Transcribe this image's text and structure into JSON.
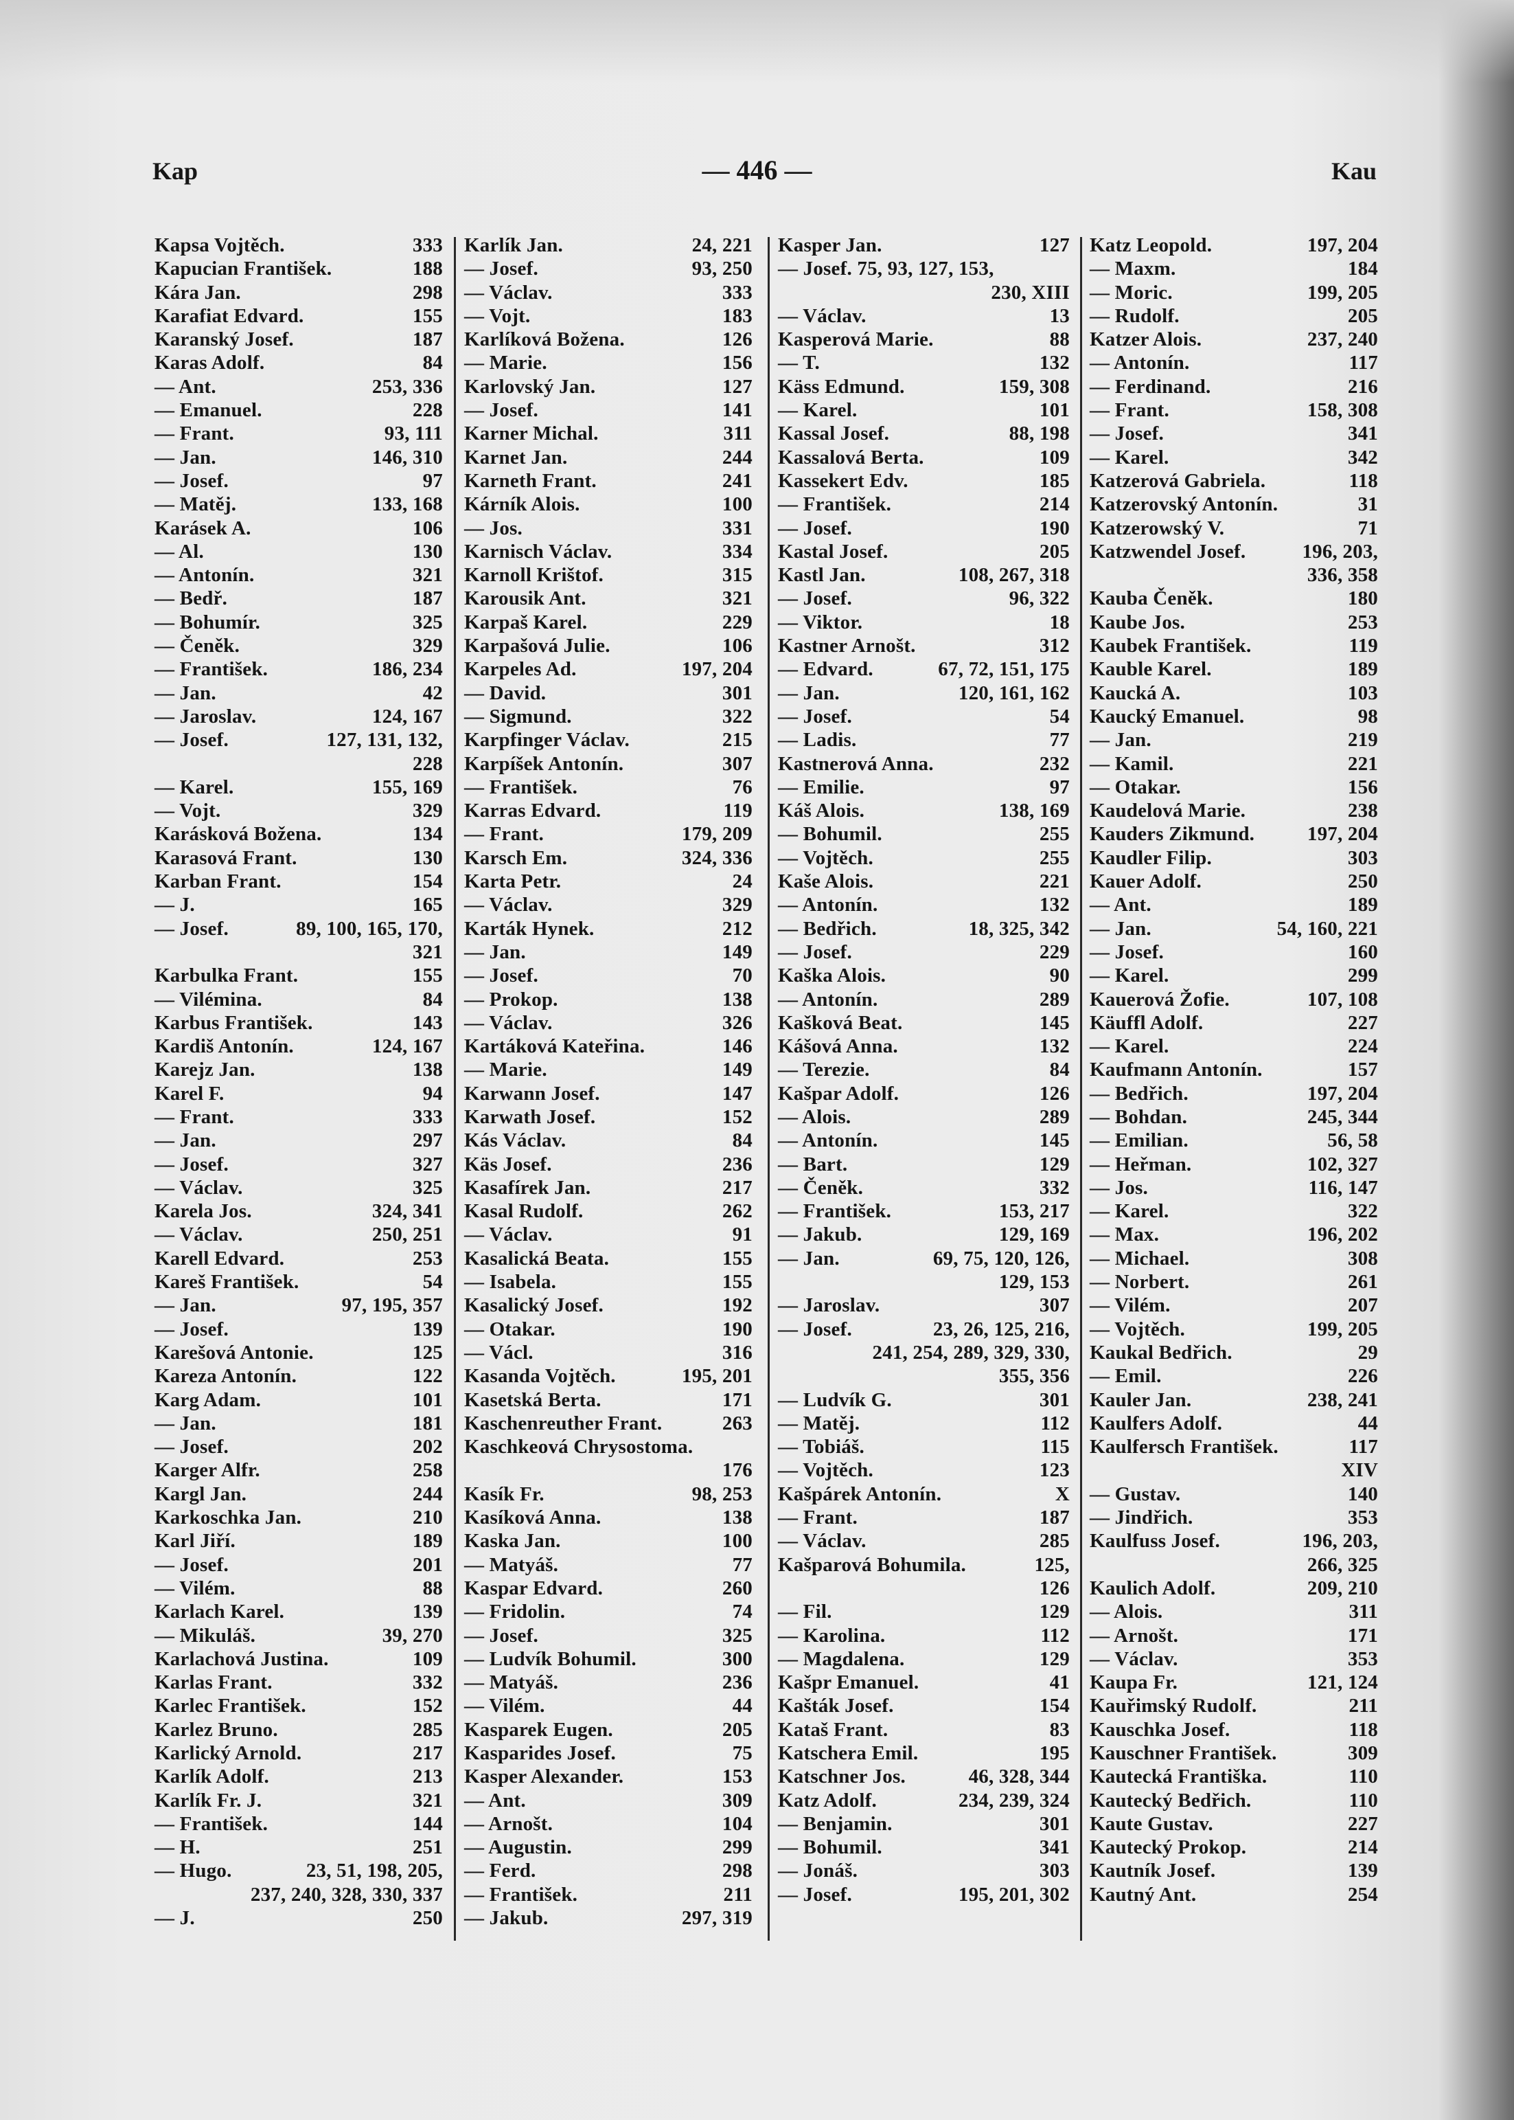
{
  "header": {
    "left": "Kap",
    "page_number": "— 446 —",
    "right": "Kau"
  },
  "columns": [
    [
      [
        "Kapsa Vojtěch.",
        "333"
      ],
      [
        "Kapucian František.",
        "188"
      ],
      [
        "Kára Jan.",
        "298"
      ],
      [
        "Karafiat Edvard.",
        "155"
      ],
      [
        "Karanský Josef.",
        "187"
      ],
      [
        "Karas Adolf.",
        "84"
      ],
      [
        "— Ant.",
        "253, 336"
      ],
      [
        "— Emanuel.",
        "228"
      ],
      [
        "— Frant.",
        "93, 111"
      ],
      [
        "— Jan.",
        "146, 310"
      ],
      [
        "— Josef.",
        "97"
      ],
      [
        "— Matěj.",
        "133, 168"
      ],
      [
        "Karásek A.",
        "106"
      ],
      [
        "— Al.",
        "130"
      ],
      [
        "— Antonín.",
        "321"
      ],
      [
        "— Bedř.",
        "187"
      ],
      [
        "— Bohumír.",
        "325"
      ],
      [
        "— Čeněk.",
        "329"
      ],
      [
        "— František.",
        "186, 234"
      ],
      [
        "— Jan.",
        "42"
      ],
      [
        "— Jaroslav.",
        "124, 167"
      ],
      [
        "— Josef.",
        "127, 131, 132,"
      ],
      [
        "",
        "228"
      ],
      [
        "— Karel.",
        "155, 169"
      ],
      [
        "— Vojt.",
        "329"
      ],
      [
        "Karásková Božena.",
        "134"
      ],
      [
        "Karasová Frant.",
        "130"
      ],
      [
        "Karban Frant.",
        "154"
      ],
      [
        "— J.",
        "165"
      ],
      [
        "— Josef.",
        "89, 100, 165, 170,"
      ],
      [
        "",
        "321"
      ],
      [
        "Karbulka Frant.",
        "155"
      ],
      [
        "— Vilémina.",
        "84"
      ],
      [
        "Karbus František.",
        "143"
      ],
      [
        "Kardiš Antonín.",
        "124, 167"
      ],
      [
        "Karejz Jan.",
        "138"
      ],
      [
        "Karel F.",
        "94"
      ],
      [
        "— Frant.",
        "333"
      ],
      [
        "— Jan.",
        "297"
      ],
      [
        "— Josef.",
        "327"
      ],
      [
        "— Václav.",
        "325"
      ],
      [
        "Karela Jos.",
        "324, 341"
      ],
      [
        "— Václav.",
        "250, 251"
      ],
      [
        "Karell Edvard.",
        "253"
      ],
      [
        "Kareš František.",
        "54"
      ],
      [
        "— Jan.",
        "97, 195, 357"
      ],
      [
        "— Josef.",
        "139"
      ],
      [
        "Karešová Antonie.",
        "125"
      ],
      [
        "Kareza Antonín.",
        "122"
      ],
      [
        "Karg Adam.",
        "101"
      ],
      [
        "— Jan.",
        "181"
      ],
      [
        "— Josef.",
        "202"
      ],
      [
        "Karger Alfr.",
        "258"
      ],
      [
        "Kargl Jan.",
        "244"
      ],
      [
        "Karkoschka Jan.",
        "210"
      ],
      [
        "Karl Jiří.",
        "189"
      ],
      [
        "— Josef.",
        "201"
      ],
      [
        "— Vilém.",
        "88"
      ],
      [
        "Karlach Karel.",
        "139"
      ],
      [
        "— Mikuláš.",
        "39, 270"
      ],
      [
        "Karlachová Justina.",
        "109"
      ],
      [
        "Karlas Frant.",
        "332"
      ],
      [
        "Karlec František.",
        "152"
      ],
      [
        "Karlez Bruno.",
        "285"
      ],
      [
        "Karlický Arnold.",
        "217"
      ],
      [
        "Karlík Adolf.",
        "213"
      ],
      [
        "Karlík Fr. J.",
        "321"
      ],
      [
        "— František.",
        "144"
      ],
      [
        "— H.",
        "251"
      ],
      [
        "— Hugo.",
        "23, 51, 198, 205,"
      ],
      [
        "",
        "237, 240, 328, 330, 337"
      ],
      [
        "— J.",
        "250"
      ]
    ],
    [
      [
        "Karlík Jan.",
        "24, 221"
      ],
      [
        "— Josef.",
        "93, 250"
      ],
      [
        "— Václav.",
        "333"
      ],
      [
        "— Vojt.",
        "183"
      ],
      [
        "Karlíková Božena.",
        "126"
      ],
      [
        "— Marie.",
        "156"
      ],
      [
        "Karlovský Jan.",
        "127"
      ],
      [
        "— Josef.",
        "141"
      ],
      [
        "Karner Michal.",
        "311"
      ],
      [
        "Karnet Jan.",
        "244"
      ],
      [
        "Karneth Frant.",
        "241"
      ],
      [
        "Kárník Alois.",
        "100"
      ],
      [
        "— Jos.",
        "331"
      ],
      [
        "Karnisch Václav.",
        "334"
      ],
      [
        "Karnoll Krištof.",
        "315"
      ],
      [
        "Karousik Ant.",
        "321"
      ],
      [
        "Karpaš Karel.",
        "229"
      ],
      [
        "Karpašová Julie.",
        "106"
      ],
      [
        "Karpeles Ad.",
        "197, 204"
      ],
      [
        "— David.",
        "301"
      ],
      [
        "— Sigmund.",
        "322"
      ],
      [
        "Karpfinger Václav.",
        "215"
      ],
      [
        "Karpíšek Antonín.",
        "307"
      ],
      [
        "— František.",
        "76"
      ],
      [
        "Karras Edvard.",
        "119"
      ],
      [
        "— Frant.",
        "179, 209"
      ],
      [
        "Karsch Em.",
        "324, 336"
      ],
      [
        "Karta Petr.",
        "24"
      ],
      [
        "— Václav.",
        "329"
      ],
      [
        "Karták Hynek.",
        "212"
      ],
      [
        "— Jan.",
        "149"
      ],
      [
        "— Josef.",
        "70"
      ],
      [
        "— Prokop.",
        "138"
      ],
      [
        "— Václav.",
        "326"
      ],
      [
        "Kartáková Kateřina.",
        "146"
      ],
      [
        "— Marie.",
        "149"
      ],
      [
        "Karwann Josef.",
        "147"
      ],
      [
        "Karwath Josef.",
        "152"
      ],
      [
        "Kás Václav.",
        "84"
      ],
      [
        "Käs Josef.",
        "236"
      ],
      [
        "Kasafírek Jan.",
        "217"
      ],
      [
        "Kasal Rudolf.",
        "262"
      ],
      [
        "— Václav.",
        "91"
      ],
      [
        "Kasalická Beata.",
        "155"
      ],
      [
        "— Isabela.",
        "155"
      ],
      [
        "Kasalický Josef.",
        "192"
      ],
      [
        "— Otakar.",
        "190"
      ],
      [
        "— Václ.",
        "316"
      ],
      [
        "Kasanda Vojtěch.",
        "195, 201"
      ],
      [
        "Kasetská Berta.",
        "171"
      ],
      [
        "Kaschenreuther Frant.",
        "263"
      ],
      [
        "Kaschkeová Chrysostoma.",
        ""
      ],
      [
        "",
        "176"
      ],
      [
        "Kasík Fr.",
        "98, 253"
      ],
      [
        "Kasíková Anna.",
        "138"
      ],
      [
        "Kaska Jan.",
        "100"
      ],
      [
        "— Matyáš.",
        "77"
      ],
      [
        "Kaspar Edvard.",
        "260"
      ],
      [
        "— Fridolin.",
        "74"
      ],
      [
        "— Josef.",
        "325"
      ],
      [
        "— Ludvík Bohumil.",
        "300"
      ],
      [
        "— Matyáš.",
        "236"
      ],
      [
        "— Vilém.",
        "44"
      ],
      [
        "Kasparek Eugen.",
        "205"
      ],
      [
        "Kasparides Josef.",
        "75"
      ],
      [
        "Kasper Alexander.",
        "153"
      ],
      [
        "— Ant.",
        "309"
      ],
      [
        "— Arnošt.",
        "104"
      ],
      [
        "— Augustin.",
        "299"
      ],
      [
        "— Ferd.",
        "298"
      ],
      [
        "— František.",
        "211"
      ],
      [
        "— Jakub.",
        "297, 319"
      ]
    ],
    [
      [
        "Kasper Jan.",
        "127"
      ],
      [
        "— Josef. 75, 93, 127, 153,",
        ""
      ],
      [
        "",
        "230, XIII"
      ],
      [
        "— Václav.",
        "13"
      ],
      [
        "Kasperová Marie.",
        "88"
      ],
      [
        "— T.",
        "132"
      ],
      [
        "Käss Edmund.",
        "159, 308"
      ],
      [
        "— Karel.",
        "101"
      ],
      [
        "Kassal Josef.",
        "88, 198"
      ],
      [
        "Kassalová Berta.",
        "109"
      ],
      [
        "Kassekert Edv.",
        "185"
      ],
      [
        "— František.",
        "214"
      ],
      [
        "— Josef.",
        "190"
      ],
      [
        "Kastal Josef.",
        "205"
      ],
      [
        "Kastl Jan.",
        "108, 267, 318"
      ],
      [
        "— Josef.",
        "96, 322"
      ],
      [
        "— Viktor.",
        "18"
      ],
      [
        "Kastner Arnošt.",
        "312"
      ],
      [
        "— Edvard.",
        "67, 72, 151, 175"
      ],
      [
        "— Jan.",
        "120, 161, 162"
      ],
      [
        "— Josef.",
        "54"
      ],
      [
        "— Ladis.",
        "77"
      ],
      [
        "Kastnerová Anna.",
        "232"
      ],
      [
        "— Emilie.",
        "97"
      ],
      [
        "Káš Alois.",
        "138, 169"
      ],
      [
        "— Bohumil.",
        "255"
      ],
      [
        "— Vojtěch.",
        "255"
      ],
      [
        "Kaše Alois.",
        "221"
      ],
      [
        "— Antonín.",
        "132"
      ],
      [
        "— Bedřich.",
        "18, 325, 342"
      ],
      [
        "— Josef.",
        "229"
      ],
      [
        "Kaška Alois.",
        "90"
      ],
      [
        "— Antonín.",
        "289"
      ],
      [
        "Kašková Beat.",
        "145"
      ],
      [
        "Kášová Anna.",
        "132"
      ],
      [
        "— Terezie.",
        "84"
      ],
      [
        "Kašpar Adolf.",
        "126"
      ],
      [
        "— Alois.",
        "289"
      ],
      [
        "— Antonín.",
        "145"
      ],
      [
        "— Bart.",
        "129"
      ],
      [
        "— Čeněk.",
        "332"
      ],
      [
        "— František.",
        "153, 217"
      ],
      [
        "— Jakub.",
        "129, 169"
      ],
      [
        "— Jan.",
        "69, 75, 120, 126,"
      ],
      [
        "",
        "129, 153"
      ],
      [
        "— Jaroslav.",
        "307"
      ],
      [
        "— Josef.",
        "23, 26, 125, 216,"
      ],
      [
        "",
        "241, 254, 289, 329, 330,"
      ],
      [
        "",
        "355, 356"
      ],
      [
        "— Ludvík G.",
        "301"
      ],
      [
        "— Matěj.",
        "112"
      ],
      [
        "— Tobiáš.",
        "115"
      ],
      [
        "— Vojtěch.",
        "123"
      ],
      [
        "Kašpárek Antonín.",
        "X"
      ],
      [
        "— Frant.",
        "187"
      ],
      [
        "— Václav.",
        "285"
      ],
      [
        "Kašparová Bohumila.",
        "125,"
      ],
      [
        "",
        "126"
      ],
      [
        "— Fil.",
        "129"
      ],
      [
        "— Karolina.",
        "112"
      ],
      [
        "— Magdalena.",
        "129"
      ],
      [
        "Kašpr Emanuel.",
        "41"
      ],
      [
        "Kašták Josef.",
        "154"
      ],
      [
        "Kataš Frant.",
        "83"
      ],
      [
        "Katschera Emil.",
        "195"
      ],
      [
        "Katschner Jos.",
        "46, 328, 344"
      ],
      [
        "Katz Adolf.",
        "234, 239, 324"
      ],
      [
        "— Benjamin.",
        "301"
      ],
      [
        "— Bohumil.",
        "341"
      ],
      [
        "— Jonáš.",
        "303"
      ],
      [
        "— Josef.",
        "195, 201, 302"
      ]
    ],
    [
      [
        "Katz Leopold.",
        "197, 204"
      ],
      [
        "— Maxm.",
        "184"
      ],
      [
        "— Moric.",
        "199, 205"
      ],
      [
        "— Rudolf.",
        "205"
      ],
      [
        "Katzer Alois.",
        "237, 240"
      ],
      [
        "— Antonín.",
        "117"
      ],
      [
        "— Ferdinand.",
        "216"
      ],
      [
        "— Frant.",
        "158, 308"
      ],
      [
        "— Josef.",
        "341"
      ],
      [
        "— Karel.",
        "342"
      ],
      [
        "Katzerová Gabriela.",
        "118"
      ],
      [
        "Katzerovský Antonín.",
        "31"
      ],
      [
        "Katzerowský V.",
        "71"
      ],
      [
        "Katzwendel Josef.",
        "196, 203,"
      ],
      [
        "",
        "336, 358"
      ],
      [
        "Kauba Čeněk.",
        "180"
      ],
      [
        "Kaube Jos.",
        "253"
      ],
      [
        "Kaubek František.",
        "119"
      ],
      [
        "Kauble Karel.",
        "189"
      ],
      [
        "Kaucká A.",
        "103"
      ],
      [
        "Kaucký Emanuel.",
        "98"
      ],
      [
        "— Jan.",
        "219"
      ],
      [
        "— Kamil.",
        "221"
      ],
      [
        "— Otakar.",
        "156"
      ],
      [
        "Kaudelová Marie.",
        "238"
      ],
      [
        "Kauders Zikmund.",
        "197, 204"
      ],
      [
        "Kaudler Filip.",
        "303"
      ],
      [
        "Kauer Adolf.",
        "250"
      ],
      [
        "— Ant.",
        "189"
      ],
      [
        "— Jan.",
        "54, 160, 221"
      ],
      [
        "— Josef.",
        "160"
      ],
      [
        "— Karel.",
        "299"
      ],
      [
        "Kauerová Žofie.",
        "107, 108"
      ],
      [
        "Käuffl Adolf.",
        "227"
      ],
      [
        "— Karel.",
        "224"
      ],
      [
        "Kaufmann Antonín.",
        "157"
      ],
      [
        "— Bedřich.",
        "197, 204"
      ],
      [
        "— Bohdan.",
        "245, 344"
      ],
      [
        "— Emilian.",
        "56, 58"
      ],
      [
        "— Heřman.",
        "102, 327"
      ],
      [
        "— Jos.",
        "116, 147"
      ],
      [
        "— Karel.",
        "322"
      ],
      [
        "— Max.",
        "196, 202"
      ],
      [
        "— Michael.",
        "308"
      ],
      [
        "— Norbert.",
        "261"
      ],
      [
        "— Vilém.",
        "207"
      ],
      [
        "— Vojtěch.",
        "199, 205"
      ],
      [
        "Kaukal Bedřich.",
        "29"
      ],
      [
        "— Emil.",
        "226"
      ],
      [
        "Kauler Jan.",
        "238, 241"
      ],
      [
        "Kaulfers Adolf.",
        "44"
      ],
      [
        "Kaulfersch František.",
        "117"
      ],
      [
        "",
        "XIV"
      ],
      [
        "— Gustav.",
        "140"
      ],
      [
        "— Jindřich.",
        "353"
      ],
      [
        "Kaulfuss Josef.",
        "196, 203,"
      ],
      [
        "",
        "266, 325"
      ],
      [
        "Kaulich Adolf.",
        "209, 210"
      ],
      [
        "— Alois.",
        "311"
      ],
      [
        "— Arnošt.",
        "171"
      ],
      [
        "— Václav.",
        "353"
      ],
      [
        "Kaupa Fr.",
        "121, 124"
      ],
      [
        "Kauřimský Rudolf.",
        "211"
      ],
      [
        "Kauschka Josef.",
        "118"
      ],
      [
        "Kauschner František.",
        "309"
      ],
      [
        "Kautecká Františka.",
        "110"
      ],
      [
        "Kautecký Bedřich.",
        "110"
      ],
      [
        "Kaute Gustav.",
        "227"
      ],
      [
        "Kautecký Prokop.",
        "214"
      ],
      [
        "Kautník Josef.",
        "139"
      ],
      [
        "Kautný Ant.",
        "254"
      ]
    ]
  ]
}
